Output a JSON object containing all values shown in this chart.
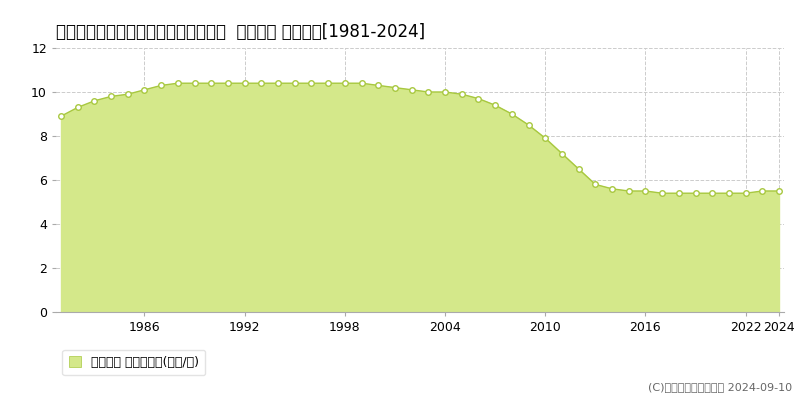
{
  "title": "北海道釧路市緑ケ岡５丁目４７番７８  地価公示 地価推移[1981-2024]",
  "years": [
    1981,
    1982,
    1983,
    1984,
    1985,
    1986,
    1987,
    1988,
    1989,
    1990,
    1991,
    1992,
    1993,
    1994,
    1995,
    1996,
    1997,
    1998,
    1999,
    2000,
    2001,
    2002,
    2003,
    2004,
    2005,
    2006,
    2007,
    2008,
    2009,
    2010,
    2011,
    2012,
    2013,
    2014,
    2015,
    2016,
    2017,
    2018,
    2019,
    2020,
    2021,
    2022,
    2023,
    2024
  ],
  "values": [
    8.9,
    9.3,
    9.6,
    9.8,
    9.9,
    10.1,
    10.3,
    10.4,
    10.4,
    10.4,
    10.4,
    10.4,
    10.4,
    10.4,
    10.4,
    10.4,
    10.4,
    10.4,
    10.4,
    10.3,
    10.2,
    10.1,
    10.0,
    10.0,
    9.9,
    9.7,
    9.4,
    9.0,
    8.5,
    7.9,
    7.2,
    6.5,
    5.8,
    5.6,
    5.5,
    5.5,
    5.4,
    5.4,
    5.4,
    5.4,
    5.4,
    5.4,
    5.5,
    5.5
  ],
  "line_color": "#a8c840",
  "fill_color": "#d4e88a",
  "marker_face_color": "#ffffff",
  "marker_edge_color": "#a8c840",
  "fill_alpha": 1.0,
  "background_color": "#ffffff",
  "plot_bg_color": "#ffffff",
  "grid_color": "#cccccc",
  "ylim": [
    0,
    12
  ],
  "yticks": [
    0,
    2,
    4,
    6,
    8,
    10,
    12
  ],
  "xtick_positions": [
    1986,
    1992,
    1998,
    2004,
    2010,
    2016,
    2022,
    2024
  ],
  "xtick_labels": [
    "1986",
    "1992",
    "1998",
    "2004",
    "2010",
    "2016",
    "2022",
    "2024"
  ],
  "legend_label": "地価公示 平均坪単価(万円/坪)",
  "copyright_text": "(C)土地価格ドットコム 2024-09-10",
  "title_fontsize": 12,
  "tick_fontsize": 9,
  "legend_fontsize": 9,
  "copyright_fontsize": 8
}
